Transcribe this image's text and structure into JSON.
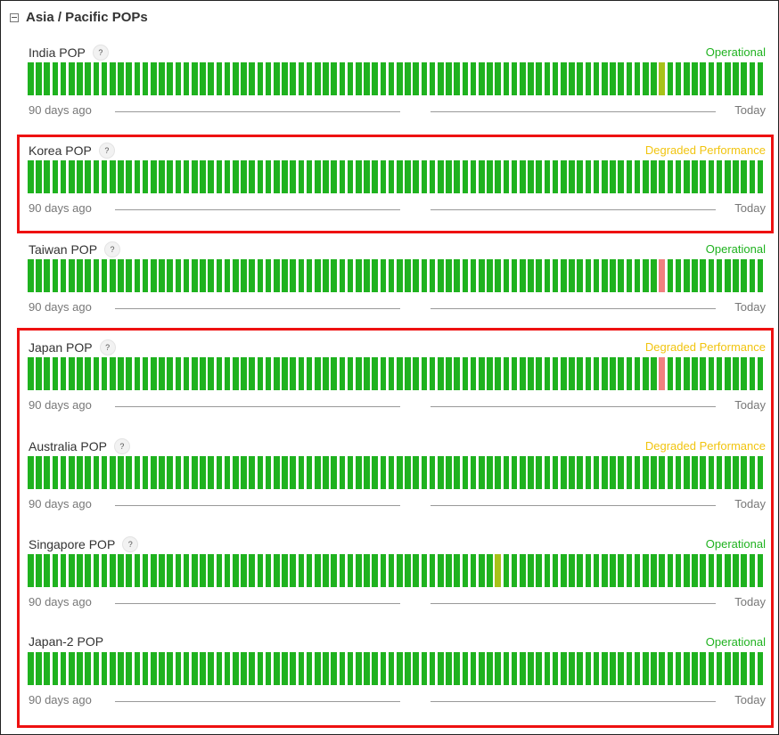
{
  "header": {
    "title": "Asia / Pacific POPs",
    "icon": "collapse-minus-icon"
  },
  "colors": {
    "operational": "#1fb21f",
    "degraded": "#f1c40f",
    "minor": "#a8c21a",
    "outage": "#f08080",
    "highlight": "#e11111"
  },
  "bar_count": 90,
  "labels": {
    "start": "90 days ago",
    "end": "Today"
  },
  "services": [
    {
      "name": "India POP",
      "status": "Operational",
      "status_type": "operational",
      "help": "?",
      "special_days": [
        {
          "index": 77,
          "type": "minor"
        }
      ]
    },
    {
      "name": "Korea POP",
      "status": "Degraded Performance",
      "status_type": "degraded",
      "help": "?",
      "special_days": []
    },
    {
      "name": "Taiwan POP",
      "status": "Operational",
      "status_type": "operational",
      "help": "?",
      "special_days": [
        {
          "index": 77,
          "type": "outage"
        }
      ]
    },
    {
      "name": "Japan POP",
      "status": "Degraded Performance",
      "status_type": "degraded",
      "help": "?",
      "special_days": [
        {
          "index": 77,
          "type": "outage"
        }
      ]
    },
    {
      "name": "Australia POP",
      "status": "Degraded Performance",
      "status_type": "degraded",
      "help": "?",
      "special_days": []
    },
    {
      "name": "Singapore POP",
      "status": "Operational",
      "status_type": "operational",
      "help": "?",
      "special_days": [
        {
          "index": 57,
          "type": "minor"
        }
      ]
    },
    {
      "name": "Japan-2 POP",
      "status": "Operational",
      "status_type": "operational",
      "help": "",
      "special_days": []
    }
  ]
}
